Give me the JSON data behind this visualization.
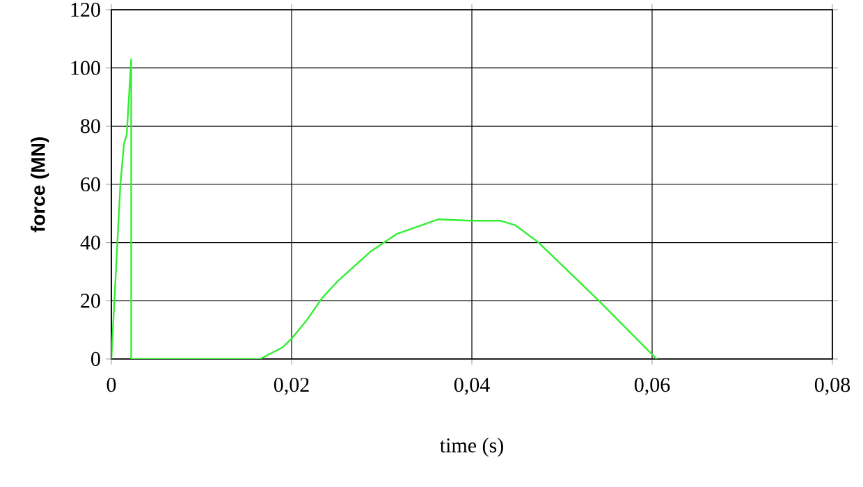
{
  "chart_data": {
    "type": "line",
    "xlabel": "time (s)",
    "ylabel": "force (MN)",
    "x": [
      0,
      0.001,
      0.0014,
      0.0017,
      0.0022,
      0.0022,
      0.0165,
      0.019,
      0.02,
      0.0216,
      0.0234,
      0.0252,
      0.0288,
      0.0317,
      0.0363,
      0.0399,
      0.0432,
      0.0448,
      0.0474,
      0.0541,
      0.0605
    ],
    "series": [
      {
        "color": "#33ee33",
        "values": [
          0,
          60,
          74,
          77,
          103,
          0,
          0,
          4,
          7,
          13,
          21,
          27,
          37,
          43,
          48,
          47.5,
          47.5,
          46,
          40,
          20,
          0
        ]
      }
    ],
    "xlim": [
      0,
      0.08
    ],
    "ylim": [
      0,
      120
    ],
    "xticks": [
      0,
      {
        "value": 0.02,
        "label": "0,02"
      },
      {
        "value": 0.04,
        "label": "0,04"
      },
      {
        "value": 0.06,
        "label": "0,06"
      },
      {
        "value": 0.08,
        "label": "0,08"
      }
    ],
    "yticks": [
      0,
      20,
      40,
      60,
      80,
      100,
      120
    ],
    "grid": true,
    "marker": "none",
    "line_style": "solid"
  }
}
